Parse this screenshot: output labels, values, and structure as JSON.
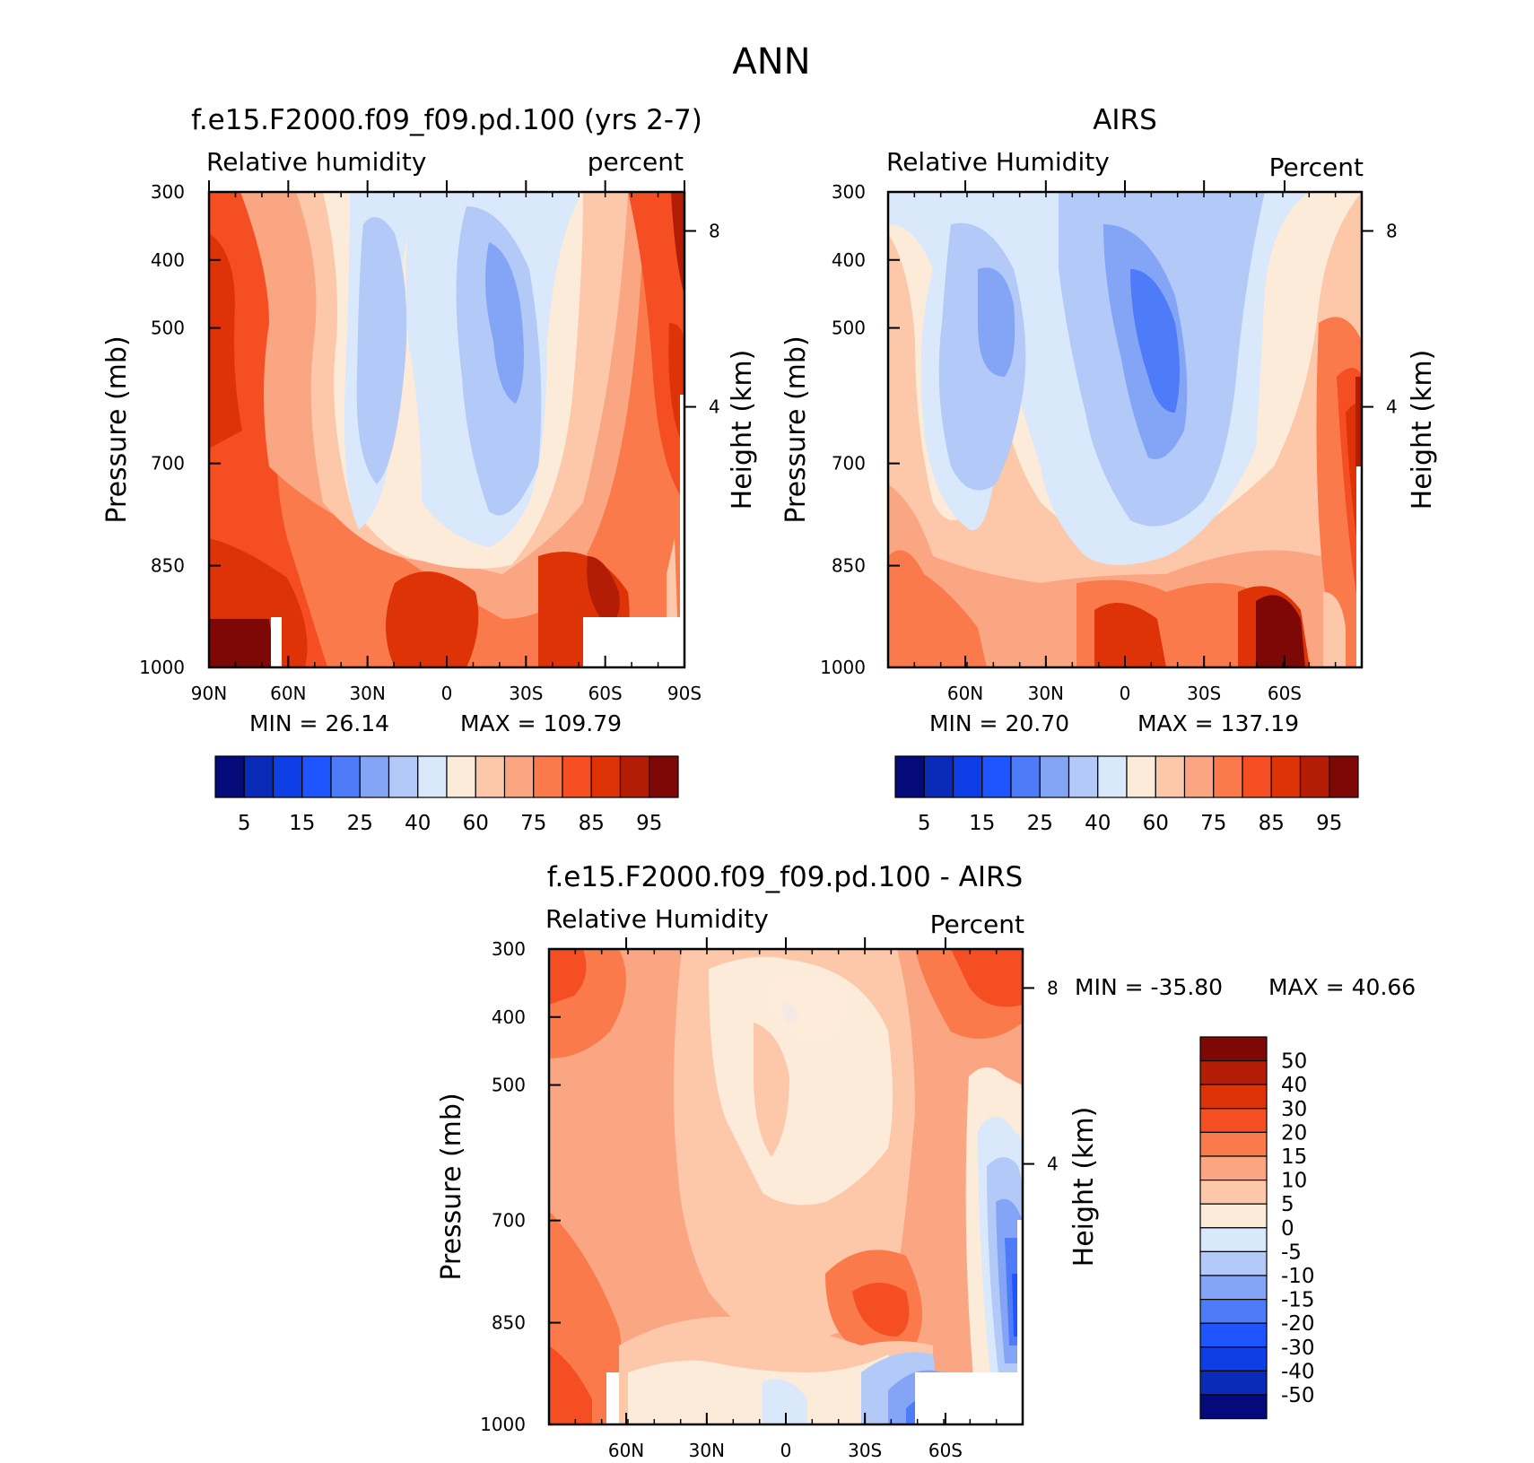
{
  "page_title": "ANN",
  "chart_data": [
    {
      "type": "heatmap",
      "id": "model",
      "title": "f.e15.F2000.f09_f09.pd.100 (yrs 2-7)",
      "left_label": "Relative humidity",
      "right_label": "percent",
      "ylabel": "Pressure (mb)",
      "y2label": "Height (km)",
      "x_ticks": [
        "90N",
        "60N",
        "30N",
        "0",
        "30S",
        "60S",
        "90S"
      ],
      "y_ticks": [
        "300",
        "400",
        "500",
        "700",
        "850",
        "1000"
      ],
      "y2_ticks": [
        "8",
        "4"
      ],
      "min_text": "MIN =   26.14",
      "max_text": "MAX = 109.79",
      "colorbar_labels": [
        "5",
        "15",
        "25",
        "40",
        "60",
        "75",
        "85",
        "95"
      ],
      "colorbar_colors": [
        "#050a7a",
        "#0a2bb8",
        "#0d3ee6",
        "#1f55ff",
        "#4e7cf8",
        "#84a5f5",
        "#b3c9f7",
        "#d9e8fa",
        "#fdebda",
        "#fcc8a9",
        "#fba683",
        "#fa7a4c",
        "#f44e22",
        "#de3307",
        "#b31d05",
        "#7e0805"
      ]
    },
    {
      "type": "heatmap",
      "id": "obs",
      "title": "AIRS",
      "left_label": "Relative Humidity",
      "right_label": "Percent",
      "ylabel": "Pressure (mb)",
      "y2label": "Height (km)",
      "x_ticks": [
        "60N",
        "30N",
        "0",
        "30S",
        "60S"
      ],
      "y_ticks": [
        "300",
        "400",
        "500",
        "700",
        "850",
        "1000"
      ],
      "y2_ticks": [
        "8",
        "4"
      ],
      "min_text": "MIN =   20.70",
      "max_text": "MAX = 137.19",
      "colorbar_labels": [
        "5",
        "15",
        "25",
        "40",
        "60",
        "75",
        "85",
        "95"
      ],
      "colorbar_colors": [
        "#050a7a",
        "#0a2bb8",
        "#0d3ee6",
        "#1f55ff",
        "#4e7cf8",
        "#84a5f5",
        "#b3c9f7",
        "#d9e8fa",
        "#fdebda",
        "#fcc8a9",
        "#fba683",
        "#fa7a4c",
        "#f44e22",
        "#de3307",
        "#b31d05",
        "#7e0805"
      ]
    },
    {
      "type": "heatmap",
      "id": "diff",
      "title": "f.e15.F2000.f09_f09.pd.100 - AIRS",
      "left_label": "Relative Humidity",
      "right_label": "Percent",
      "ylabel": "Pressure (mb)",
      "y2label": "Height (km)",
      "x_ticks": [
        "60N",
        "30N",
        "0",
        "30S",
        "60S"
      ],
      "y_ticks": [
        "300",
        "400",
        "500",
        "700",
        "850",
        "1000"
      ],
      "y2_ticks": [
        "8",
        "4"
      ],
      "min_text": "MIN = -35.80",
      "max_text": "MAX =   40.66",
      "colorbar_labels": [
        "50",
        "40",
        "30",
        "20",
        "15",
        "10",
        "5",
        "0",
        "-5",
        "-10",
        "-15",
        "-20",
        "-30",
        "-40",
        "-50"
      ],
      "colorbar_colors": [
        "#7e0805",
        "#b31d05",
        "#de3307",
        "#f44e22",
        "#fa7a4c",
        "#fba683",
        "#fcc8a9",
        "#fdebda",
        "#d9e8fa",
        "#b3c9f7",
        "#84a5f5",
        "#4e7cf8",
        "#1f55ff",
        "#0d3ee6",
        "#0a2bb8",
        "#050a7a"
      ]
    }
  ]
}
